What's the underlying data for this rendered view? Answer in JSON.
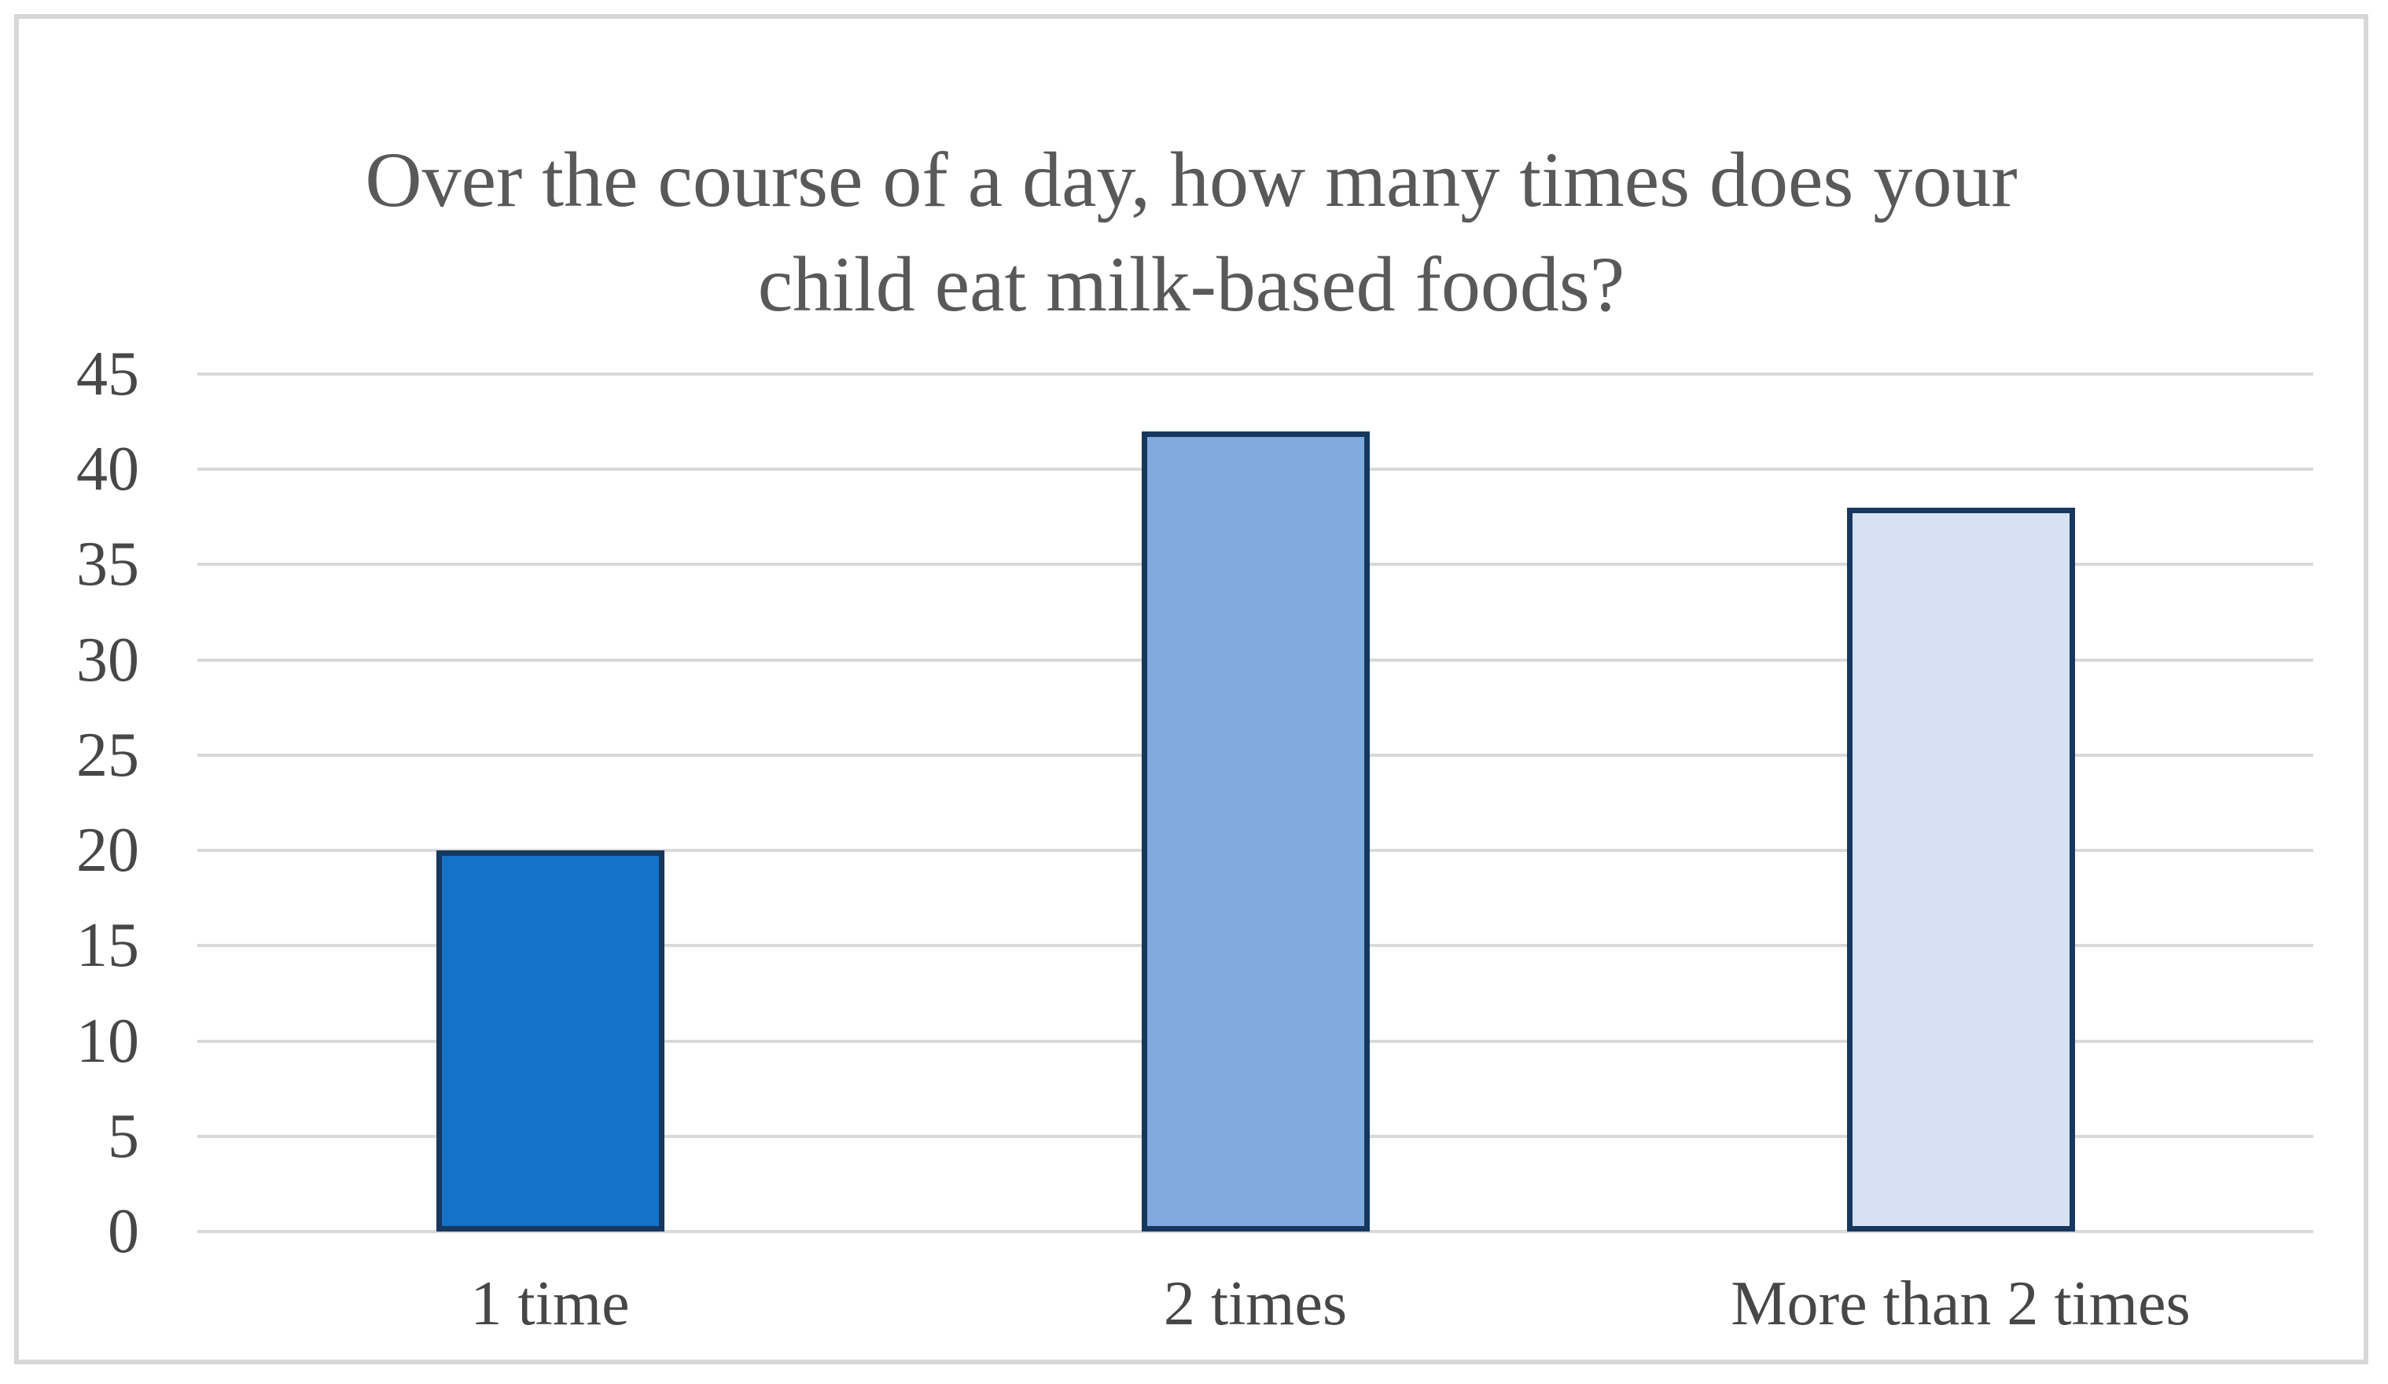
{
  "chart_data": {
    "type": "bar",
    "title": "Over the course of a day, how many times does your child eat milk-based foods?",
    "categories": [
      "1 time",
      "2 times",
      "More than 2 times"
    ],
    "values": [
      20,
      42,
      38
    ],
    "ylim": [
      0,
      45
    ],
    "ytick_step": 5,
    "yticks": [
      0,
      5,
      10,
      15,
      20,
      25,
      30,
      35,
      40,
      45
    ],
    "xlabel": "",
    "ylabel": "",
    "grid": "horizontal",
    "legend": "none",
    "bar_fill_colors": [
      "#1572c8",
      "#81aadf",
      "#d6e2f4"
    ],
    "bar_border_color": "#17375e",
    "gridline_color": "#d9d9d9",
    "title_color": "#595959",
    "axis_label_color": "#474747",
    "frame_border_color": "#d7d7d7",
    "background_color": "#ffffff"
  }
}
